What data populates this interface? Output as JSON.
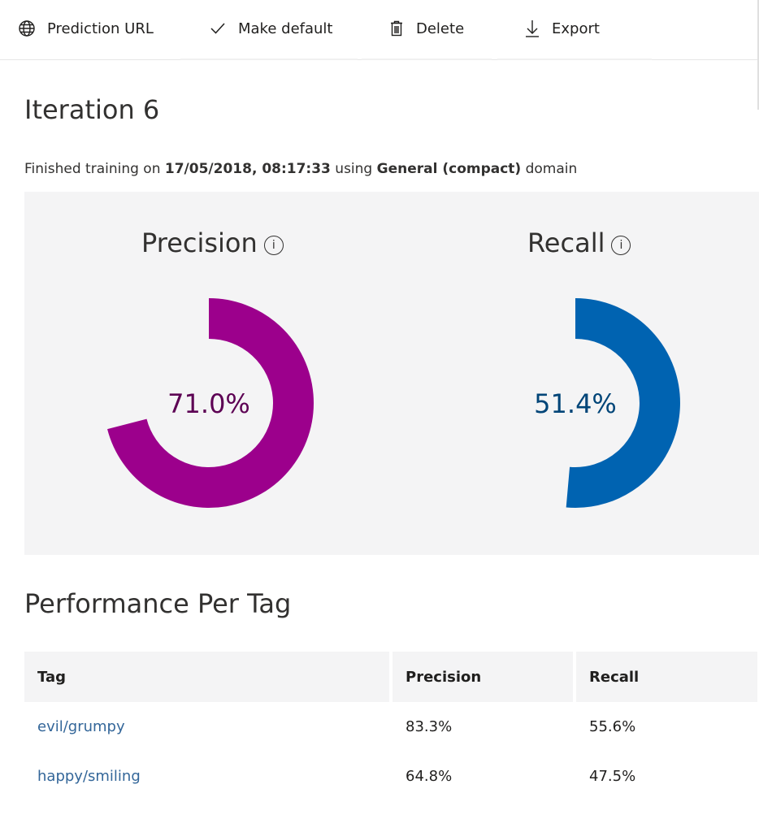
{
  "toolbar": {
    "items": [
      {
        "label": "Prediction URL",
        "icon": "globe-icon"
      },
      {
        "label": "Make default",
        "icon": "checkmark-icon"
      },
      {
        "label": "Delete",
        "icon": "trash-icon"
      },
      {
        "label": "Export",
        "icon": "download-icon"
      }
    ]
  },
  "header": {
    "title": "Iteration 6",
    "subtitle_prefix": "Finished training on ",
    "subtitle_date": "17/05/2018, 08:17:33",
    "subtitle_mid": " using ",
    "subtitle_domain": "General (compact)",
    "subtitle_suffix": " domain"
  },
  "metrics": {
    "precision": {
      "label": "Precision",
      "value_text": "71.0%",
      "fraction": 0.71,
      "color": "#9c008c",
      "text_color": "#5c0053"
    },
    "recall": {
      "label": "Recall",
      "value_text": "51.4%",
      "fraction": 0.514,
      "color": "#0063b1",
      "text_color": "#004578"
    }
  },
  "performance": {
    "title": "Performance Per Tag",
    "columns": [
      "Tag",
      "Precision",
      "Recall"
    ],
    "rows": [
      {
        "tag": "evil/grumpy",
        "precision": "83.3%",
        "recall": "55.6%"
      },
      {
        "tag": "happy/smiling",
        "precision": "64.8%",
        "recall": "47.5%"
      }
    ]
  }
}
